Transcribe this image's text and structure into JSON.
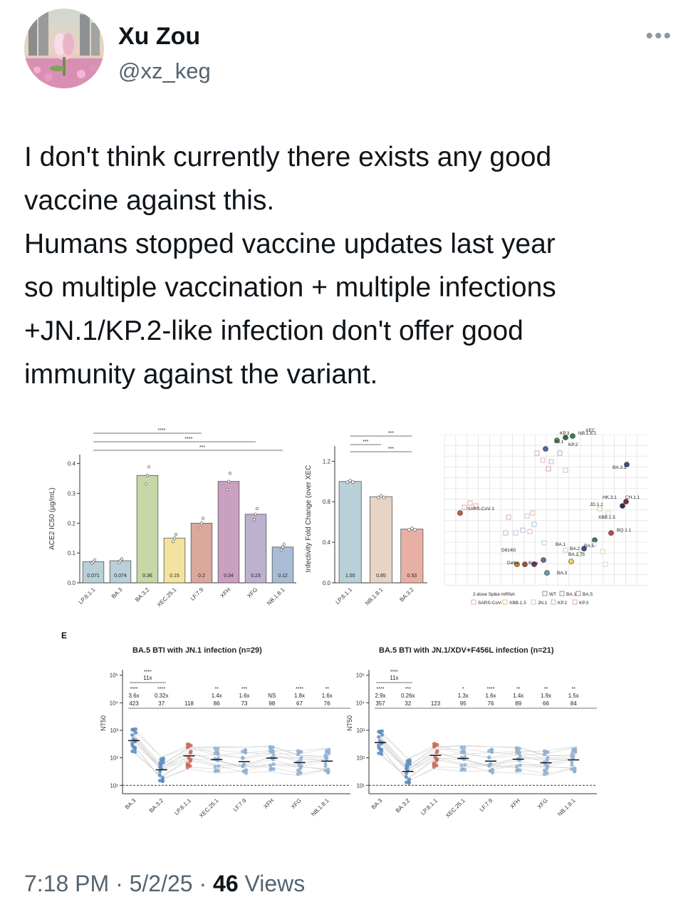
{
  "author": {
    "name": "Xu Zou",
    "handle": "@xz_keg"
  },
  "more_icon": "•••",
  "tweet": {
    "text": "I don't think currently there exists any good\nvaccine against this.\nHumans stopped vaccine updates last year\nso multiple vaccination + multiple infections\n+JN.1/KP.2-like infection don't offer good\nimmunity against the variant."
  },
  "footer": {
    "time": "7:18 PM",
    "sep1": "·",
    "date": "5/2/25",
    "sep2": "·",
    "views_count": "46",
    "views_label": "Views"
  },
  "chart_data": [
    {
      "type": "bar",
      "ylabel": "ACE2 IC50 (µg/mL)",
      "categories": [
        "LP.8.1.1",
        "BA.3",
        "BA.3.2",
        "XEC.25.1",
        "LF.7.9",
        "XFH",
        "XFG",
        "NB.1.8.1"
      ],
      "values": [
        0.071,
        0.074,
        0.36,
        0.15,
        0.2,
        0.34,
        0.23,
        0.12
      ],
      "value_labels": [
        "0.071",
        "0.074",
        "0.36",
        "0.15",
        "0.2",
        "0.34",
        "0.23",
        "0.12"
      ],
      "colors": [
        "#b9d0d8",
        "#b9d0d8",
        "#c8d7a6",
        "#f3e2a0",
        "#dba89c",
        "#c9a0c0",
        "#bdb1cf",
        "#a9bcd6"
      ],
      "yticks": [
        "0.0",
        "0.1",
        "0.2",
        "0.3",
        "0.4"
      ],
      "ylim": [
        0,
        0.43
      ],
      "significance": [
        "****",
        "****",
        "***"
      ]
    },
    {
      "type": "bar",
      "ylabel": "Infectivity Fold Change (over XEC",
      "categories": [
        "LP.8.1.1",
        "NB.1.8.1",
        "BA.3.2"
      ],
      "values": [
        1.0,
        0.85,
        0.53
      ],
      "value_labels": [
        "1.00",
        "0.85",
        "0.53"
      ],
      "colors": [
        "#b9d0d8",
        "#e8d4c4",
        "#e8b0a4"
      ],
      "yticks": [
        "0.0",
        "0.4",
        "0.8",
        "1.2"
      ],
      "ylim": [
        0,
        1.35
      ],
      "significance": [
        "***",
        "***",
        "***"
      ]
    },
    {
      "type": "scatter",
      "labels": [
        "KP.3",
        "JN.1",
        "NB.1.8.1",
        "XEC",
        "KP.2",
        "BA.3.2",
        "SARS-CoV-1",
        "HK.3.1",
        "CH.1.1",
        "JD.1.1",
        "XBB.1.5",
        "BQ.1.1",
        "BA.1",
        "BA.2",
        "BA.5",
        "D614G",
        "Delta",
        "Beta",
        "BA.2.75",
        "BA.3"
      ],
      "legend": [
        "2-dose Spike mRNA",
        "WT",
        "BA.1",
        "BA.5",
        "SARS-CoV-1",
        "XBB.1.5",
        "JN.1",
        "KP.2",
        "KP.3"
      ]
    },
    {
      "type": "scatter",
      "panel_letter": "E",
      "title": "BA.5 BTI with JN.1 infection (n=29)",
      "ylabel": "NT50",
      "categories": [
        "BA.3",
        "BA.3.2",
        "LP.8.1.1",
        "XEC.25.1",
        "LF.7.9",
        "XFH",
        "XFG",
        "NB.1.8.1"
      ],
      "values": [
        423,
        37,
        118,
        86,
        73,
        98,
        67,
        76
      ],
      "value_labels": [
        "423",
        "37",
        "118",
        "86",
        "73",
        "98",
        "67",
        "76"
      ],
      "fold_labels": [
        "3.6x",
        "0.32x",
        "",
        "1.4x",
        "1.6x",
        "NS",
        "1.8x",
        "1.6x"
      ],
      "stars": [
        "****",
        "****",
        "",
        "**",
        "***",
        "",
        "****",
        "**"
      ],
      "top_fold": "11x",
      "top_stars": "****",
      "yticks": [
        "10¹",
        "10²",
        "10³",
        "10⁴",
        "10⁵"
      ],
      "colors": [
        "#5b8cc0",
        "#5b8cc0",
        "#c86a5e",
        "#8fb0d0",
        "#8fb0d0",
        "#8fb0d0",
        "#8fb0d0",
        "#8fb0d0"
      ]
    },
    {
      "type": "scatter",
      "title": "BA.5 BTI with JN.1/XDV+F456L infection (n=21)",
      "ylabel": "NT50",
      "categories": [
        "BA.3",
        "BA.3.2",
        "LP.8.1.1",
        "XEC.25.1",
        "LF.7.9",
        "XFH",
        "XFG",
        "NB.1.8.1"
      ],
      "values": [
        357,
        32,
        123,
        95,
        76,
        89,
        66,
        84
      ],
      "value_labels": [
        "357",
        "32",
        "123",
        "95",
        "76",
        "89",
        "66",
        "84"
      ],
      "fold_labels": [
        "2.9x",
        "0.26x",
        "",
        "1.3x",
        "1.6x",
        "1.4x",
        "1.9x",
        "1.5x"
      ],
      "stars": [
        "****",
        "***",
        "",
        "*",
        "****",
        "**",
        "**",
        "**"
      ],
      "top_fold": "11x",
      "top_stars": "****",
      "yticks": [
        "10¹",
        "10²",
        "10³",
        "10⁴",
        "10⁵"
      ],
      "colors": [
        "#5b8cc0",
        "#5b8cc0",
        "#c86a5e",
        "#8fb0d0",
        "#8fb0d0",
        "#8fb0d0",
        "#8fb0d0",
        "#8fb0d0"
      ]
    }
  ]
}
